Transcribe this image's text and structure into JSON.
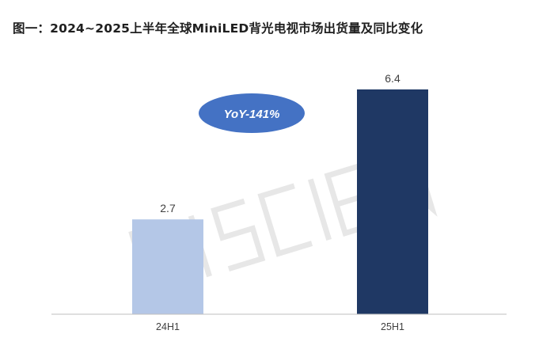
{
  "chart_data": {
    "type": "bar",
    "title": "图一：2024~2025上半年全球MiniLED背光电视市场出货量及同比变化",
    "categories": [
      "24H1",
      "25H1"
    ],
    "values": [
      2.7,
      6.4
    ],
    "value_labels": [
      "2.7",
      "6.4"
    ],
    "colors": [
      "#b4c7e7",
      "#1f3864"
    ],
    "ylim": [
      0,
      6.4
    ],
    "grid": false,
    "annotation": {
      "text": "YoY-141%",
      "shape": "ellipse",
      "color": "#4472c4"
    },
    "watermark": "DISCIEN"
  }
}
